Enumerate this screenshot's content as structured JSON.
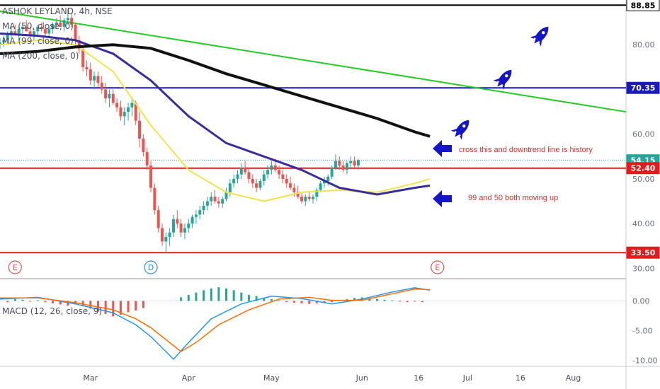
{
  "header": {
    "symbol_title": "ASHOK LEYLAND, 4h, NSE",
    "indicators": [
      "MA (50, close, 0)",
      "MA (99, close, 0)",
      "MA (200, close, 0)"
    ]
  },
  "price_axis": {
    "ticks": [
      "80.00",
      "70.00",
      "60.00",
      "50.00",
      "40.00",
      "30.00"
    ],
    "tick_values": [
      80,
      70,
      60,
      50,
      40,
      30
    ],
    "range": [
      28,
      90
    ]
  },
  "price_badges": [
    {
      "label": "88.85",
      "value": 88.85,
      "bg": "#ffffff",
      "fg": "#000000",
      "border": "#000000"
    },
    {
      "label": "70.35",
      "value": 70.35,
      "bg": "#1a1ab8",
      "fg": "#ffffff",
      "border": "#1a1ab8"
    },
    {
      "label": "54.15",
      "value": 54.15,
      "bg": "#26a69a",
      "fg": "#ffffff",
      "border": "#26a69a"
    },
    {
      "label": "52.40",
      "value": 52.4,
      "bg": "#e31b1b",
      "fg": "#ffffff",
      "border": "#e31b1b"
    },
    {
      "label": "33.50",
      "value": 33.5,
      "bg": "#e31b1b",
      "fg": "#ffffff",
      "border": "#e31b1b"
    }
  ],
  "horizontal_levels": [
    {
      "value": 88.85,
      "color": "#000000"
    },
    {
      "value": 70.35,
      "color": "#1a1ab8"
    },
    {
      "value": 52.4,
      "color": "#e31b1b"
    },
    {
      "value": 33.5,
      "color": "#e31b1b"
    }
  ],
  "annotations": {
    "note_cross": "cross this and downtrend line is history",
    "note_ma": "99 and 50 both moving up"
  },
  "event_markers": [
    {
      "label": "E",
      "color": "#e0504d",
      "time": 2.0
    },
    {
      "label": "D",
      "color": "#2a8fd8",
      "time": 20.0
    },
    {
      "label": "E",
      "color": "#e0504d",
      "time": 58.0
    }
  ],
  "macd": {
    "label": "MACD (12, 26, close, 9)",
    "ticks": [
      "0.00",
      "-5.00",
      "-10.00"
    ],
    "tick_values": [
      0,
      -5,
      -10
    ],
    "range": [
      -11,
      3.5
    ]
  },
  "time_axis": {
    "labels": [
      "Mar",
      "Apr",
      "May",
      "Jun",
      "16",
      "Jul",
      "16",
      "Aug"
    ],
    "positions": [
      12,
      25,
      36,
      48,
      55.5,
      62,
      69,
      76
    ]
  },
  "colors": {
    "ma50": "#f2e34a",
    "ma99": "#3a2c9c",
    "ma200": "#111111",
    "trendline": "#22cc22",
    "candle_up": "#26a69a",
    "candle_down": "#ef5350",
    "arrow": "#1515c8"
  },
  "chart_data": {
    "type": "candlestick",
    "time_units": "bar index",
    "trendline": {
      "from": [
        0,
        87.5
      ],
      "to": [
        83,
        65
      ]
    },
    "ma200": [
      [
        0,
        78
      ],
      [
        5,
        78.5
      ],
      [
        10,
        79.5
      ],
      [
        15,
        80
      ],
      [
        20,
        79.2
      ],
      [
        25,
        76.5
      ],
      [
        30,
        73.5
      ],
      [
        35,
        71
      ],
      [
        40,
        68.5
      ],
      [
        45,
        66
      ],
      [
        50,
        63.5
      ],
      [
        55,
        60.5
      ],
      [
        57,
        59.5
      ]
    ],
    "ma99": [
      [
        0,
        82.5
      ],
      [
        5,
        82
      ],
      [
        10,
        81
      ],
      [
        15,
        78
      ],
      [
        20,
        72
      ],
      [
        25,
        64
      ],
      [
        30,
        58
      ],
      [
        35,
        55
      ],
      [
        40,
        52
      ],
      [
        45,
        48
      ],
      [
        50,
        46.5
      ],
      [
        55,
        48
      ],
      [
        57,
        48.5
      ]
    ],
    "ma50": [
      [
        0,
        80
      ],
      [
        5,
        81
      ],
      [
        10,
        80
      ],
      [
        15,
        74
      ],
      [
        20,
        62
      ],
      [
        25,
        52
      ],
      [
        30,
        47
      ],
      [
        35,
        45
      ],
      [
        40,
        47
      ],
      [
        45,
        47.5
      ],
      [
        50,
        47
      ],
      [
        55,
        49
      ],
      [
        57,
        50
      ]
    ],
    "ohlc": [
      [
        0,
        80,
        81.5,
        79,
        80.5
      ],
      [
        0.5,
        80.5,
        82,
        79.5,
        81
      ],
      [
        1,
        81,
        83,
        80,
        82.5
      ],
      [
        1.5,
        82.5,
        84,
        81.5,
        83
      ],
      [
        2,
        83,
        84.5,
        82,
        82.5
      ],
      [
        2.5,
        82.5,
        84,
        81,
        83.5
      ],
      [
        3,
        83.5,
        85,
        82.5,
        84
      ],
      [
        3.5,
        84,
        85.5,
        83,
        83
      ],
      [
        4,
        83,
        84,
        81.5,
        82
      ],
      [
        4.5,
        82,
        83.5,
        81,
        83
      ],
      [
        5,
        83,
        84.5,
        82,
        84
      ],
      [
        5.5,
        84,
        85,
        83,
        83.5
      ],
      [
        6,
        83.5,
        84.5,
        82,
        82.5
      ],
      [
        6.5,
        82.5,
        84,
        81.5,
        83.5
      ],
      [
        7,
        83.5,
        85,
        82.5,
        84.5
      ],
      [
        7.5,
        84.5,
        86,
        83.5,
        85
      ],
      [
        8,
        85,
        86.5,
        84,
        84
      ],
      [
        8.5,
        84,
        86,
        83,
        85.5
      ],
      [
        9,
        85.5,
        88,
        84.5,
        86
      ],
      [
        9.5,
        86,
        87,
        84,
        84.5
      ],
      [
        10,
        84.5,
        85,
        80,
        81
      ],
      [
        10.5,
        81,
        82,
        78,
        79
      ],
      [
        11,
        79,
        80,
        74,
        75
      ],
      [
        11.5,
        75,
        76.5,
        73,
        74.5
      ],
      [
        12,
        74.5,
        76,
        71,
        72
      ],
      [
        12.5,
        72,
        74,
        70,
        73
      ],
      [
        13,
        73,
        74,
        70.5,
        71.5
      ],
      [
        13.5,
        71.5,
        73,
        69,
        70
      ],
      [
        14,
        70,
        71.5,
        67,
        68
      ],
      [
        14.5,
        68,
        70,
        66,
        69
      ],
      [
        15,
        69,
        70,
        66.5,
        67
      ],
      [
        15.5,
        67,
        68,
        65,
        66
      ],
      [
        16,
        66,
        67.5,
        63,
        64
      ],
      [
        16.5,
        64,
        66,
        62,
        65
      ],
      [
        17,
        65,
        67,
        63,
        66
      ],
      [
        17.5,
        66,
        68,
        64,
        67
      ],
      [
        18,
        67,
        67.5,
        62,
        63
      ],
      [
        18.5,
        63,
        65,
        57,
        59
      ],
      [
        19,
        59,
        60,
        55,
        56
      ],
      [
        19.5,
        56,
        57,
        52,
        53
      ],
      [
        20,
        53,
        54,
        47,
        48
      ],
      [
        20.5,
        48,
        49,
        42,
        43
      ],
      [
        21,
        43,
        44,
        38,
        39
      ],
      [
        21.5,
        39,
        40,
        35,
        36
      ],
      [
        22,
        36,
        38,
        33.5,
        37
      ],
      [
        22.5,
        37,
        39,
        35,
        38
      ],
      [
        23,
        38,
        42,
        37,
        41
      ],
      [
        23.5,
        41,
        43,
        39,
        40
      ],
      [
        24,
        40,
        41,
        37,
        38
      ],
      [
        24.5,
        38,
        40,
        36.5,
        39
      ],
      [
        25,
        39,
        41,
        38,
        40
      ],
      [
        25.5,
        40,
        42,
        39,
        41.5
      ],
      [
        26,
        41.5,
        43,
        40,
        42
      ],
      [
        26.5,
        42,
        44,
        41,
        43
      ],
      [
        27,
        43,
        45,
        42,
        44
      ],
      [
        27.5,
        44,
        46,
        43,
        45
      ],
      [
        28,
        45,
        47,
        44,
        46
      ],
      [
        28.5,
        46,
        47.5,
        44.5,
        45
      ],
      [
        29,
        45,
        46,
        43.5,
        44.5
      ],
      [
        29.5,
        44.5,
        46,
        43.5,
        45.5
      ],
      [
        30,
        45.5,
        48,
        45,
        47
      ],
      [
        30.5,
        47,
        50,
        46,
        49
      ],
      [
        31,
        49,
        51,
        48,
        50
      ],
      [
        31.5,
        50,
        52,
        49,
        51
      ],
      [
        32,
        51,
        53.5,
        50,
        52.5
      ],
      [
        32.5,
        52.5,
        54,
        51,
        51.5
      ],
      [
        33,
        51.5,
        52.5,
        49,
        50
      ],
      [
        33.5,
        50,
        51,
        48,
        49
      ],
      [
        34,
        49,
        50,
        47,
        48
      ],
      [
        34.5,
        48,
        50,
        47.5,
        49.5
      ],
      [
        35,
        49.5,
        52,
        48.5,
        51
      ],
      [
        35.5,
        51,
        53,
        50,
        52
      ],
      [
        36,
        52,
        54,
        51,
        53
      ],
      [
        36.5,
        53,
        54.5,
        51.5,
        52
      ],
      [
        37,
        52,
        53,
        50,
        51
      ],
      [
        37.5,
        51,
        52,
        49,
        50
      ],
      [
        38,
        50,
        51,
        48,
        49
      ],
      [
        38.5,
        49,
        50.5,
        47.5,
        48
      ],
      [
        39,
        48,
        49,
        46,
        47
      ],
      [
        39.5,
        47,
        48.5,
        45.5,
        46
      ],
      [
        40,
        46,
        47,
        44.5,
        45
      ],
      [
        40.5,
        45,
        46.5,
        44,
        46
      ],
      [
        41,
        46,
        47,
        45,
        45.5
      ],
      [
        41.5,
        45.5,
        46.5,
        44.5,
        46
      ],
      [
        42,
        46,
        48,
        45,
        47.5
      ],
      [
        42.5,
        47.5,
        49.5,
        47,
        49
      ],
      [
        43,
        49,
        50.5,
        48,
        49.5
      ],
      [
        43.5,
        49.5,
        51,
        48.5,
        50.5
      ],
      [
        44,
        50.5,
        53,
        50,
        52.5
      ],
      [
        44.5,
        52.5,
        55.5,
        52,
        54
      ],
      [
        45,
        54,
        55,
        52,
        53
      ],
      [
        45.5,
        53,
        54,
        51.5,
        52
      ],
      [
        46,
        52,
        54,
        51,
        53.5
      ],
      [
        46.5,
        53.5,
        55,
        52.5,
        54
      ],
      [
        47,
        54,
        55,
        52.5,
        53
      ],
      [
        47.5,
        53,
        54.5,
        52,
        54.2
      ]
    ],
    "macd_line": [
      [
        0,
        0.3
      ],
      [
        5,
        0.6
      ],
      [
        10,
        -0.5
      ],
      [
        15,
        -2
      ],
      [
        18,
        -4
      ],
      [
        20,
        -6
      ],
      [
        22,
        -8.5
      ],
      [
        23,
        -9.8
      ],
      [
        25,
        -7
      ],
      [
        28,
        -3
      ],
      [
        32,
        -0.5
      ],
      [
        36,
        0.8
      ],
      [
        40,
        0.4
      ],
      [
        44,
        -0.5
      ],
      [
        48,
        0.3
      ],
      [
        52,
        1.5
      ],
      [
        55,
        2.2
      ],
      [
        57,
        1.8
      ]
    ],
    "signal_line": [
      [
        0,
        0.5
      ],
      [
        5,
        0.5
      ],
      [
        10,
        -0.3
      ],
      [
        15,
        -1.5
      ],
      [
        18,
        -3
      ],
      [
        20,
        -4.5
      ],
      [
        22,
        -6.5
      ],
      [
        24,
        -8.5
      ],
      [
        26,
        -7
      ],
      [
        29,
        -4
      ],
      [
        33,
        -1.5
      ],
      [
        37,
        0.3
      ],
      [
        41,
        0.6
      ],
      [
        44,
        0.1
      ],
      [
        48,
        0.1
      ],
      [
        52,
        1.2
      ],
      [
        55,
        2
      ],
      [
        57,
        1.9
      ]
    ],
    "macd_hist": [
      [
        1,
        -0.2
      ],
      [
        2,
        0.3
      ],
      [
        3,
        0.2
      ],
      [
        4,
        -0.1
      ],
      [
        5,
        0.1
      ],
      [
        6,
        -0.2
      ],
      [
        7,
        -0.4
      ],
      [
        8,
        -0.6
      ],
      [
        9,
        -0.8
      ],
      [
        10,
        -0.5
      ],
      [
        11,
        -0.9
      ],
      [
        12,
        -1.3
      ],
      [
        13,
        -1.8
      ],
      [
        14,
        -2.2
      ],
      [
        15,
        -2.6
      ],
      [
        16,
        -2.3
      ],
      [
        17,
        -1.9
      ],
      [
        18,
        -1.6
      ],
      [
        19,
        -1.2
      ],
      [
        24,
        0.6
      ],
      [
        25,
        1.0
      ],
      [
        26,
        1.4
      ],
      [
        27,
        1.8
      ],
      [
        28,
        2.1
      ],
      [
        29,
        2.3
      ],
      [
        30,
        2.1
      ],
      [
        31,
        1.8
      ],
      [
        32,
        1.4
      ],
      [
        33,
        1.0
      ],
      [
        34,
        0.8
      ],
      [
        35,
        0.5
      ],
      [
        36,
        0.3
      ],
      [
        37,
        0.1
      ],
      [
        38,
        -0.2
      ],
      [
        39,
        -0.3
      ],
      [
        40,
        -0.4
      ],
      [
        41,
        -0.5
      ],
      [
        42,
        -0.4
      ],
      [
        43,
        -0.3
      ],
      [
        44,
        -0.2
      ],
      [
        45,
        0.1
      ],
      [
        46,
        0.3
      ],
      [
        47,
        0.5
      ],
      [
        48,
        0.6
      ],
      [
        49,
        0.4
      ],
      [
        50,
        0.3
      ],
      [
        51,
        0.2
      ],
      [
        52,
        0.1
      ],
      [
        53,
        -0.1
      ],
      [
        54,
        -0.2
      ],
      [
        55,
        -0.1
      ],
      [
        56,
        -0.2
      ]
    ]
  }
}
